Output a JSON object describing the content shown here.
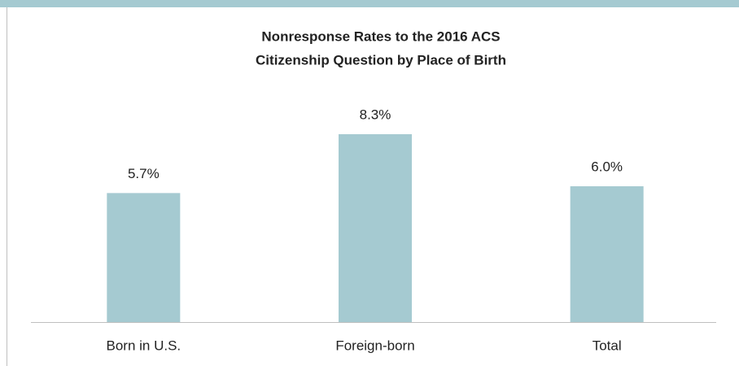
{
  "chart_data": {
    "type": "bar",
    "title": [
      "Nonresponse Rates to the 2016 ACS",
      "Citizenship Question by Place of Birth"
    ],
    "categories": [
      "Born in U.S.",
      "Foreign-born",
      "Total"
    ],
    "values": [
      5.7,
      8.3,
      6.0
    ],
    "value_labels": [
      "5.7%",
      "8.3%",
      "6.0%"
    ],
    "color": "#a5cad1"
  }
}
